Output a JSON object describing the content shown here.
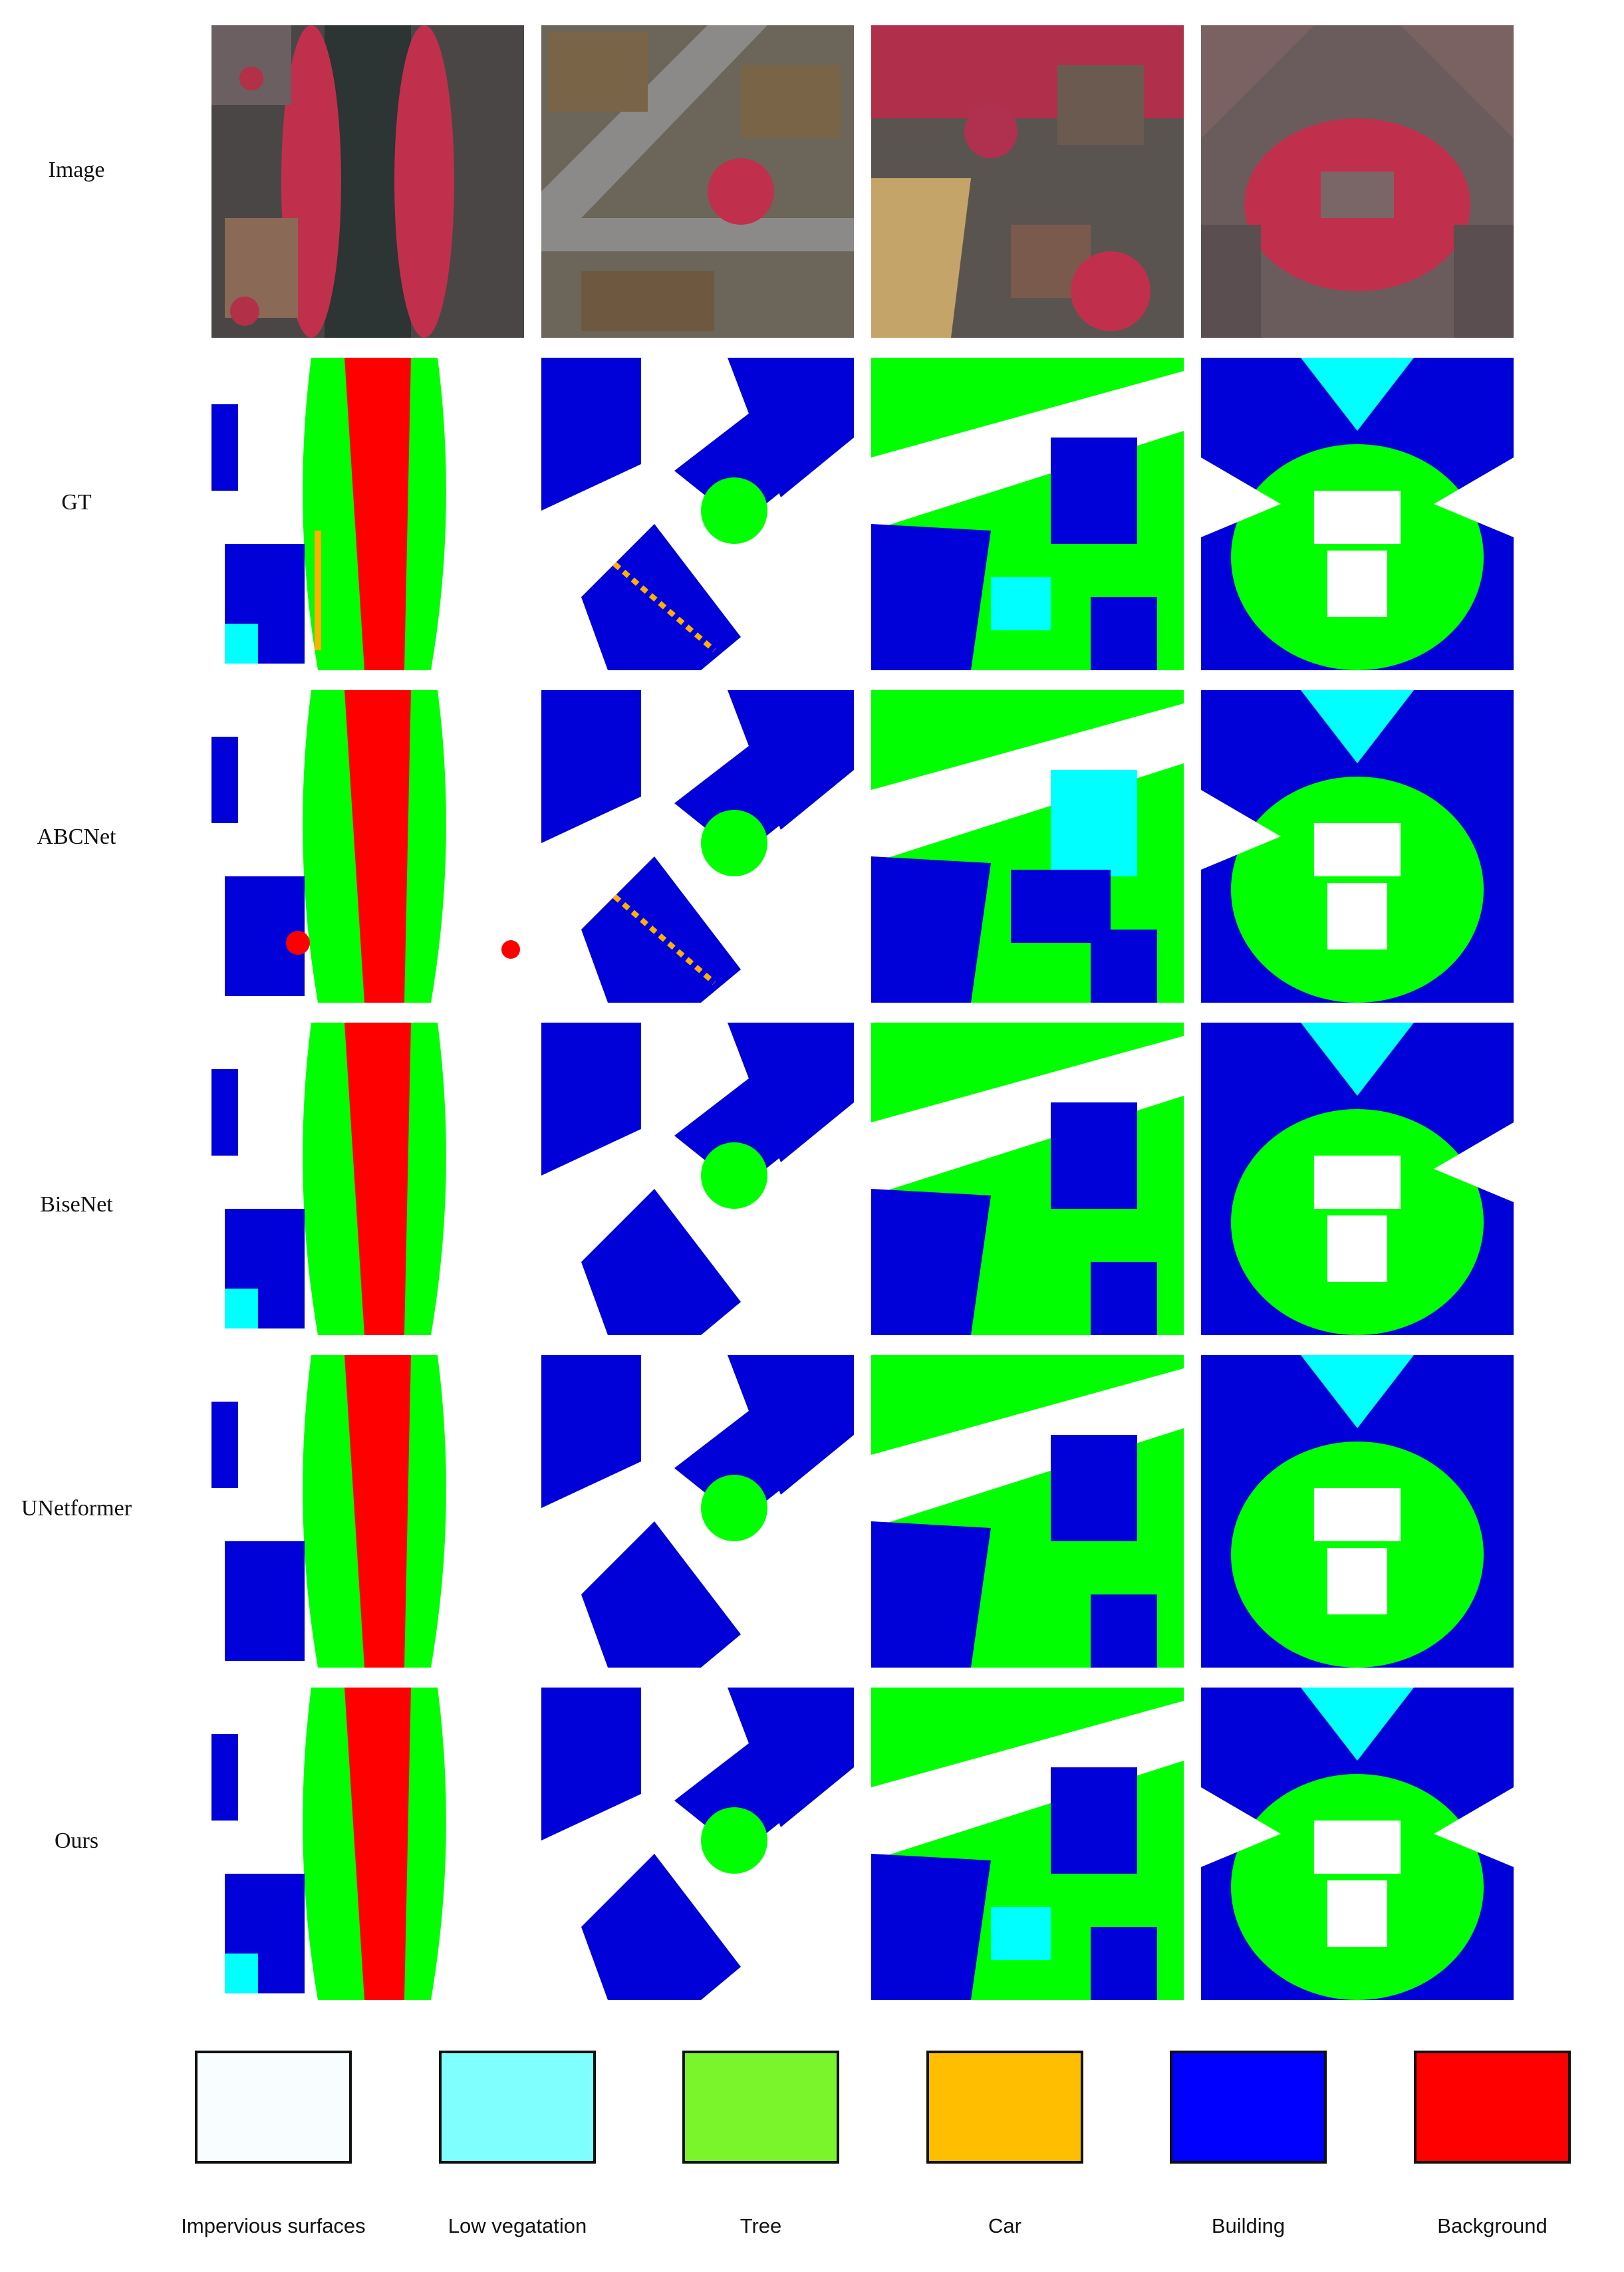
{
  "rows": [
    {
      "label": "Image"
    },
    {
      "label": "GT"
    },
    {
      "label": "ABCNet"
    },
    {
      "label": "BiseNet"
    },
    {
      "label": "UNetformer"
    },
    {
      "label": "Ours"
    }
  ],
  "legend": [
    {
      "label": "Impervious surfaces",
      "color": "#F8FEFF"
    },
    {
      "label": "Low vegatation",
      "color": "#80FFFF"
    },
    {
      "label": "Tree",
      "color": "#7AF52C"
    },
    {
      "label": "Car",
      "color": "#FFBF00"
    },
    {
      "label": "Building",
      "color": "#0000FF"
    },
    {
      "label": "Background",
      "color": "#FF0000"
    }
  ],
  "class_colors": {
    "impervious": "#FFFFFF",
    "low_veg": "#00FFFF",
    "tree": "#00FF00",
    "car": "#FFB000",
    "building": "#0000D8",
    "background": "#FF0000"
  }
}
